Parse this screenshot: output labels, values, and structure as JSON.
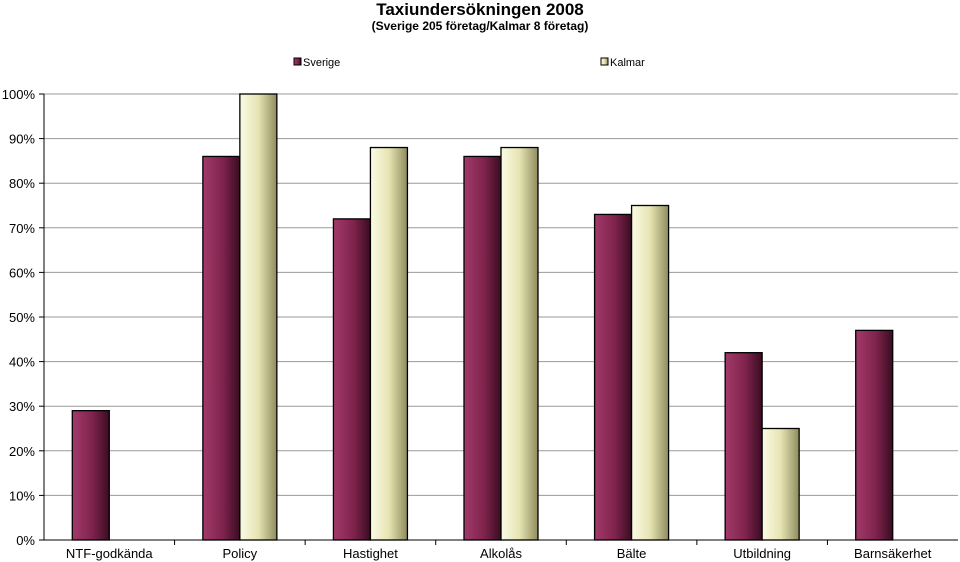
{
  "chart_data": {
    "type": "bar",
    "title": "Taxiundersökningen 2008",
    "subtitle": "(Sverige 205 företag/Kalmar 8 företag)",
    "categories": [
      "NTF-godkända",
      "Policy",
      "Hastighet",
      "Alkolås",
      "Bälte",
      "Utbildning",
      "Barnsäkerhet"
    ],
    "series": [
      {
        "name": "Sverige",
        "values": [
          29,
          86,
          72,
          86,
          73,
          42,
          47
        ],
        "color": "#8b2a55"
      },
      {
        "name": "Kalmar",
        "values": [
          null,
          100,
          88,
          88,
          75,
          25,
          null
        ],
        "color": "#e9e8b8"
      }
    ],
    "ylim": [
      0,
      100
    ],
    "yticks": [
      0,
      10,
      20,
      30,
      40,
      50,
      60,
      70,
      80,
      90,
      100
    ],
    "ytick_labels": [
      "0%",
      "10%",
      "20%",
      "30%",
      "40%",
      "50%",
      "60%",
      "70%",
      "80%",
      "90%",
      "100%"
    ],
    "xlabel": "",
    "ylabel": "",
    "grid": true,
    "legend_position": "top"
  }
}
